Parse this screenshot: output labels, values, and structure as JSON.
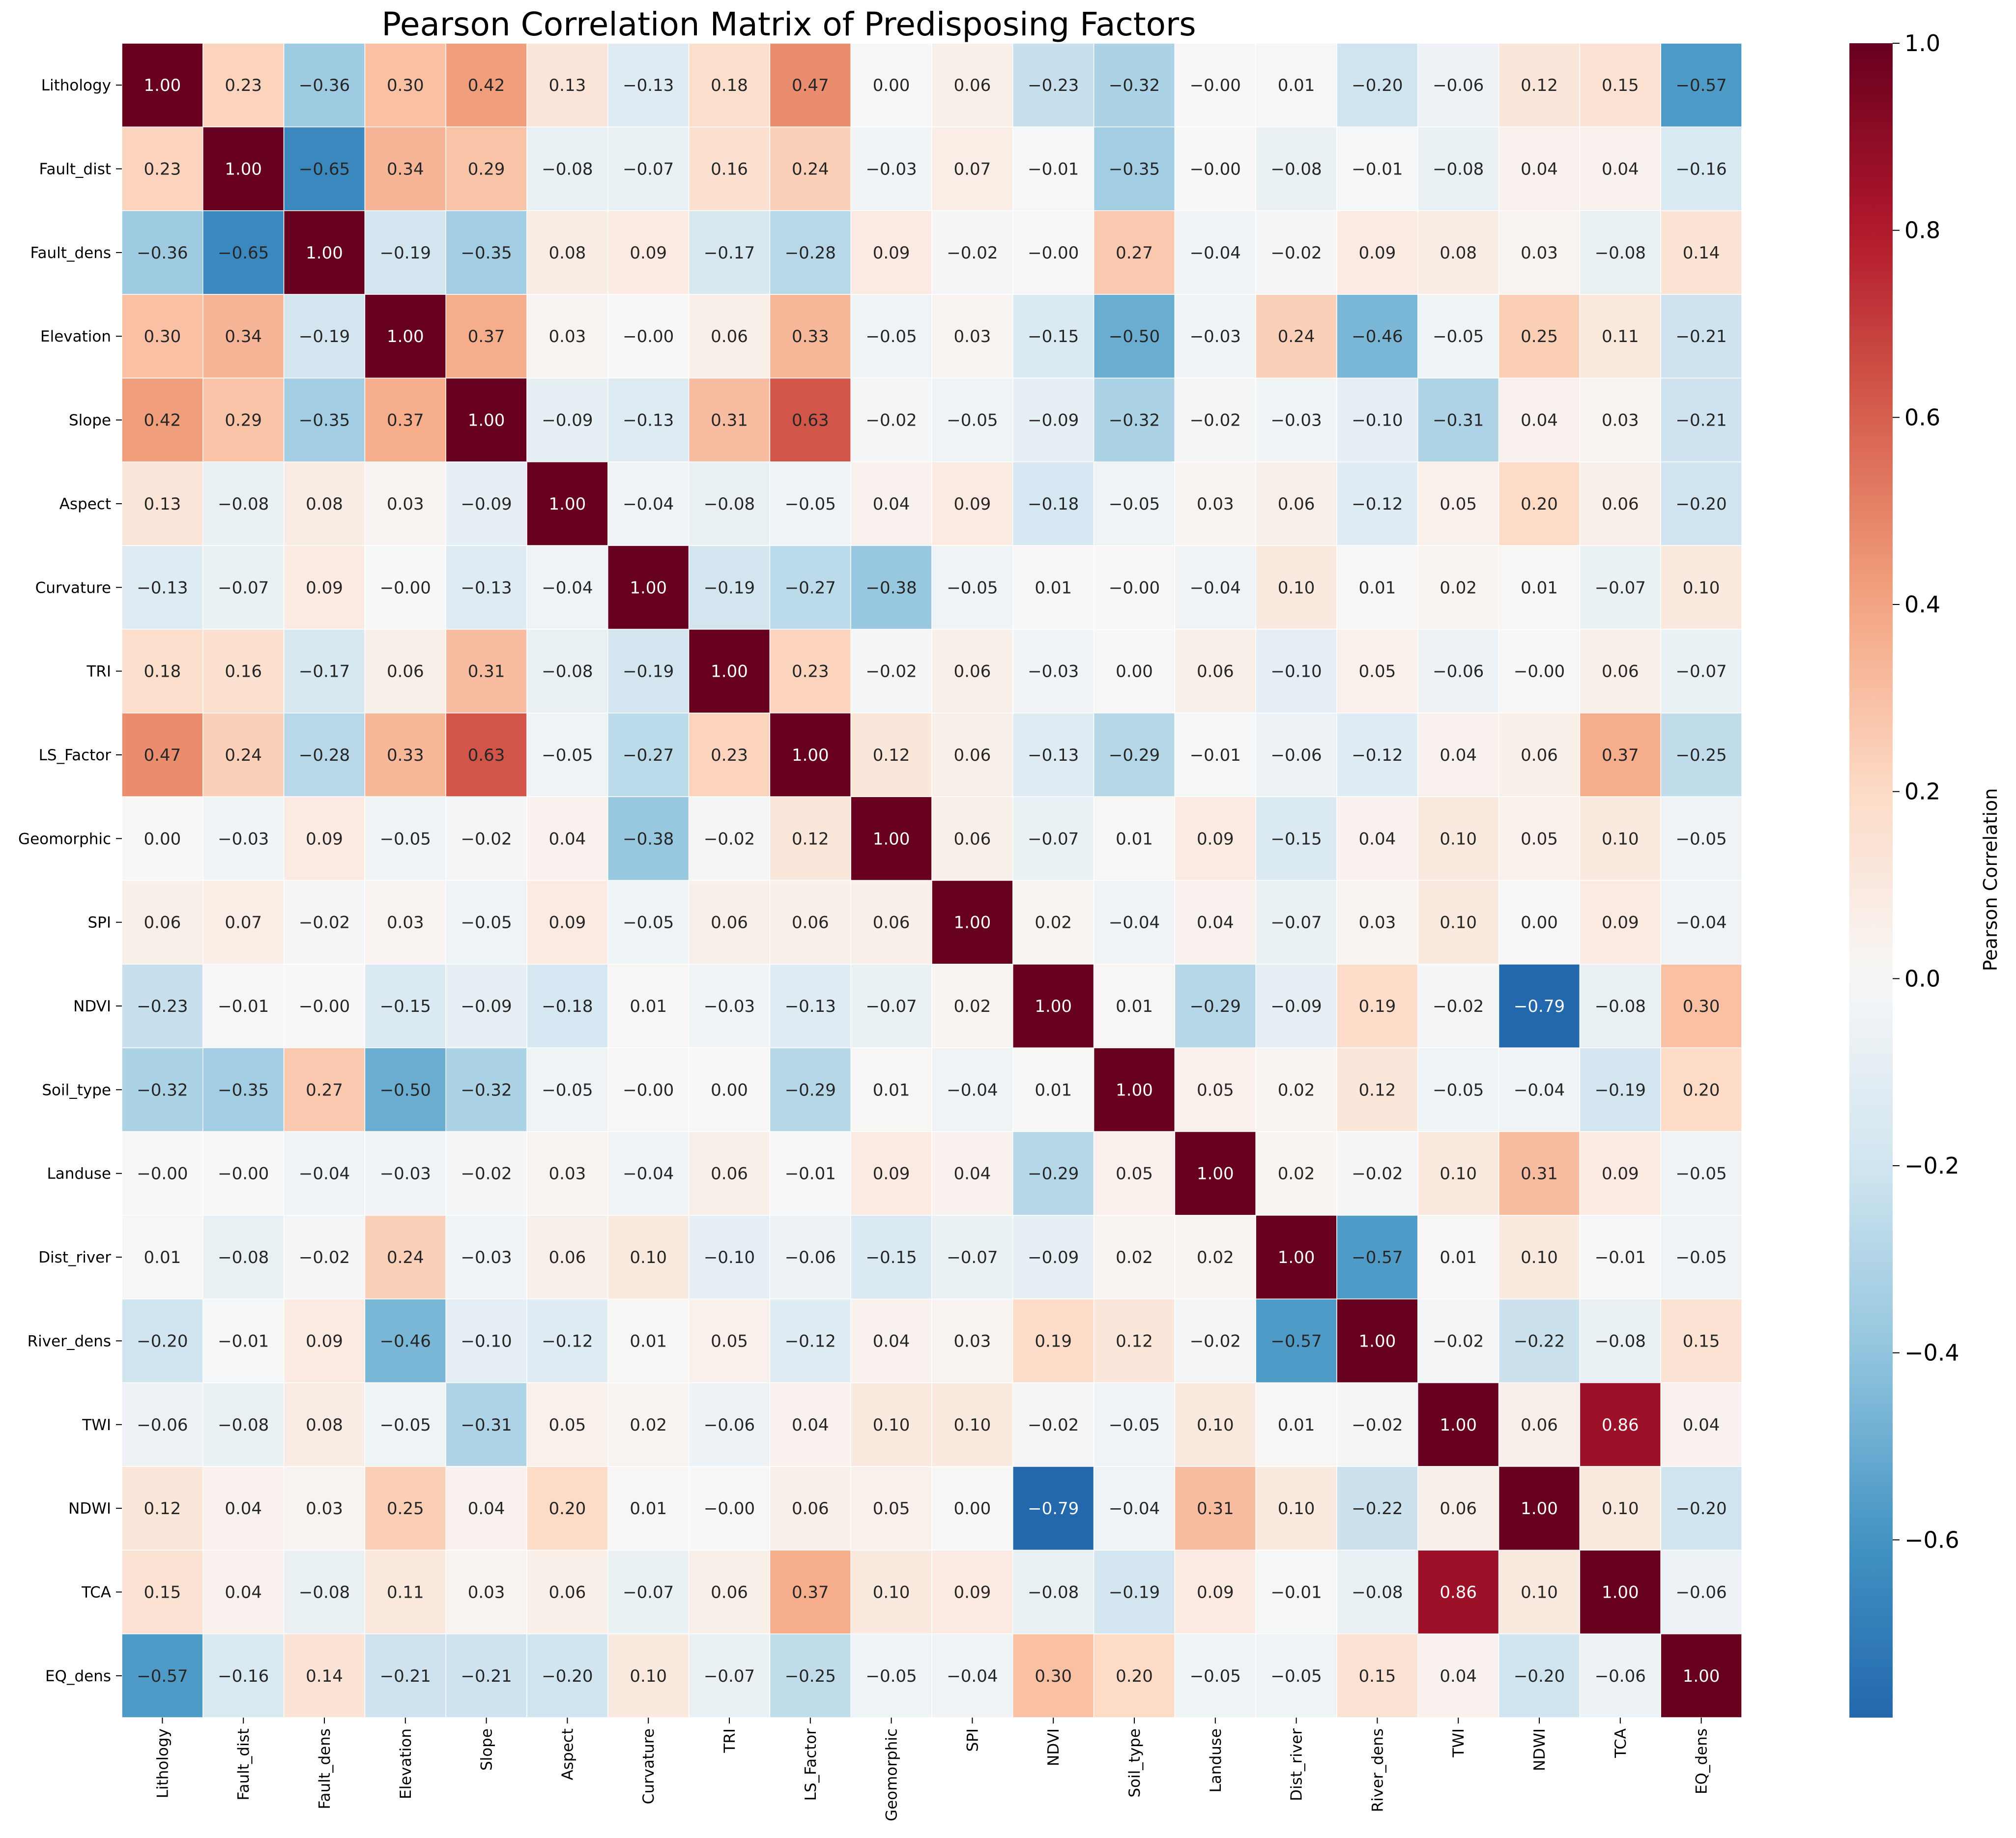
{
  "chart_data": {
    "type": "heatmap",
    "title": "Pearson Correlation Matrix of Predisposing Factors",
    "colorbar_label": "Pearson Correlation",
    "colormap": "RdBu_r",
    "vmin": -0.79,
    "vmax": 1.0,
    "colorbar_ticks": [
      -0.6,
      -0.4,
      -0.2,
      0.0,
      0.2,
      0.4,
      0.6,
      0.8,
      1.0
    ],
    "colorbar_tick_labels": [
      "−0.6",
      "−0.4",
      "−0.2",
      "0.0",
      "0.2",
      "0.4",
      "0.6",
      "0.8",
      "1.0"
    ],
    "labels": [
      "Lithology",
      "Fault_dist",
      "Fault_dens",
      "Elevation",
      "Slope",
      "Aspect",
      "Curvature",
      "TRI",
      "LS_Factor",
      "Geomorphic",
      "SPI",
      "NDVI",
      "Soil_type",
      "Landuse",
      "Dist_river",
      "River_dens",
      "TWI",
      "NDWI",
      "TCA",
      "EQ_dens"
    ],
    "matrix": [
      [
        1.0,
        0.23,
        -0.36,
        0.3,
        0.42,
        0.13,
        -0.13,
        0.18,
        0.47,
        0.0,
        0.06,
        -0.23,
        -0.32,
        -0.0001,
        0.01,
        -0.2,
        -0.06,
        0.12,
        0.15,
        -0.57
      ],
      [
        0.23,
        1.0,
        -0.65,
        0.34,
        0.29,
        -0.08,
        -0.07,
        0.16,
        0.24,
        -0.03,
        0.07,
        -0.01,
        -0.35,
        -0.0001,
        -0.08,
        -0.01,
        -0.08,
        0.04,
        0.04,
        -0.16
      ],
      [
        -0.36,
        -0.65,
        1.0,
        -0.19,
        -0.35,
        0.08,
        0.09,
        -0.17,
        -0.28,
        0.09,
        -0.02,
        -0.0001,
        0.27,
        -0.04,
        -0.02,
        0.09,
        0.08,
        0.03,
        -0.08,
        0.14
      ],
      [
        0.3,
        0.34,
        -0.19,
        1.0,
        0.37,
        0.03,
        -0.0001,
        0.06,
        0.33,
        -0.05,
        0.03,
        -0.15,
        -0.5,
        -0.03,
        0.24,
        -0.46,
        -0.05,
        0.25,
        0.11,
        -0.21
      ],
      [
        0.42,
        0.29,
        -0.35,
        0.37,
        1.0,
        -0.09,
        -0.13,
        0.31,
        0.63,
        -0.02,
        -0.05,
        -0.09,
        -0.32,
        -0.02,
        -0.03,
        -0.1,
        -0.31,
        0.04,
        0.03,
        -0.21
      ],
      [
        0.13,
        -0.08,
        0.08,
        0.03,
        -0.09,
        1.0,
        -0.04,
        -0.08,
        -0.05,
        0.04,
        0.09,
        -0.18,
        -0.05,
        0.03,
        0.06,
        -0.12,
        0.05,
        0.2,
        0.06,
        -0.2
      ],
      [
        -0.13,
        -0.07,
        0.09,
        -0.0001,
        -0.13,
        -0.04,
        1.0,
        -0.19,
        -0.27,
        -0.38,
        -0.05,
        0.01,
        -0.0001,
        -0.04,
        0.1,
        0.01,
        0.02,
        0.01,
        -0.07,
        0.1
      ],
      [
        0.18,
        0.16,
        -0.17,
        0.06,
        0.31,
        -0.08,
        -0.19,
        1.0,
        0.23,
        -0.02,
        0.06,
        -0.03,
        0.0,
        0.06,
        -0.1,
        0.05,
        -0.06,
        -0.0001,
        0.06,
        -0.07
      ],
      [
        0.47,
        0.24,
        -0.28,
        0.33,
        0.63,
        -0.05,
        -0.27,
        0.23,
        1.0,
        0.12,
        0.06,
        -0.13,
        -0.29,
        -0.01,
        -0.06,
        -0.12,
        0.04,
        0.06,
        0.37,
        -0.25
      ],
      [
        0.0,
        -0.03,
        0.09,
        -0.05,
        -0.02,
        0.04,
        -0.38,
        -0.02,
        0.12,
        1.0,
        0.06,
        -0.07,
        0.01,
        0.09,
        -0.15,
        0.04,
        0.1,
        0.05,
        0.1,
        -0.05
      ],
      [
        0.06,
        0.07,
        -0.02,
        0.03,
        -0.05,
        0.09,
        -0.05,
        0.06,
        0.06,
        0.06,
        1.0,
        0.02,
        -0.04,
        0.04,
        -0.07,
        0.03,
        0.1,
        0.0,
        0.09,
        -0.04
      ],
      [
        -0.23,
        -0.01,
        -0.0001,
        -0.15,
        -0.09,
        -0.18,
        0.01,
        -0.03,
        -0.13,
        -0.07,
        0.02,
        1.0,
        0.01,
        -0.29,
        -0.09,
        0.19,
        -0.02,
        -0.79,
        -0.08,
        0.3
      ],
      [
        -0.32,
        -0.35,
        0.27,
        -0.5,
        -0.32,
        -0.05,
        -0.0001,
        0.0,
        -0.29,
        0.01,
        -0.04,
        0.01,
        1.0,
        0.05,
        0.02,
        0.12,
        -0.05,
        -0.04,
        -0.19,
        0.2
      ],
      [
        -0.0001,
        -0.0001,
        -0.04,
        -0.03,
        -0.02,
        0.03,
        -0.04,
        0.06,
        -0.01,
        0.09,
        0.04,
        -0.29,
        0.05,
        1.0,
        0.02,
        -0.02,
        0.1,
        0.31,
        0.09,
        -0.05
      ],
      [
        0.01,
        -0.08,
        -0.02,
        0.24,
        -0.03,
        0.06,
        0.1,
        -0.1,
        -0.06,
        -0.15,
        -0.07,
        -0.09,
        0.02,
        0.02,
        1.0,
        -0.57,
        0.01,
        0.1,
        -0.01,
        -0.05
      ],
      [
        -0.2,
        -0.01,
        0.09,
        -0.46,
        -0.1,
        -0.12,
        0.01,
        0.05,
        -0.12,
        0.04,
        0.03,
        0.19,
        0.12,
        -0.02,
        -0.57,
        1.0,
        -0.02,
        -0.22,
        -0.08,
        0.15
      ],
      [
        -0.06,
        -0.08,
        0.08,
        -0.05,
        -0.31,
        0.05,
        0.02,
        -0.06,
        0.04,
        0.1,
        0.1,
        -0.02,
        -0.05,
        0.1,
        0.01,
        -0.02,
        1.0,
        0.06,
        0.86,
        0.04
      ],
      [
        0.12,
        0.04,
        0.03,
        0.25,
        0.04,
        0.2,
        0.01,
        -0.0001,
        0.06,
        0.05,
        0.0,
        -0.79,
        -0.04,
        0.31,
        0.1,
        -0.22,
        0.06,
        1.0,
        0.1,
        -0.2
      ],
      [
        0.15,
        0.04,
        -0.08,
        0.11,
        0.03,
        0.06,
        -0.07,
        0.06,
        0.37,
        0.1,
        0.09,
        -0.08,
        -0.19,
        0.09,
        -0.01,
        -0.08,
        0.86,
        0.1,
        1.0,
        -0.06
      ],
      [
        -0.57,
        -0.16,
        0.14,
        -0.21,
        -0.21,
        -0.2,
        0.1,
        -0.07,
        -0.25,
        -0.05,
        -0.04,
        0.3,
        0.2,
        -0.05,
        -0.05,
        0.15,
        0.04,
        -0.2,
        -0.06,
        1.0
      ]
    ],
    "cell_text": [
      [
        "1.00",
        "0.23",
        "−0.36",
        "0.30",
        "0.42",
        "0.13",
        "−0.13",
        "0.18",
        "0.47",
        "0.00",
        "0.06",
        "−0.23",
        "−0.32",
        "−0.00",
        "0.01",
        "−0.20",
        "−0.06",
        "0.12",
        "0.15",
        "−0.57"
      ],
      [
        "0.23",
        "1.00",
        "−0.65",
        "0.34",
        "0.29",
        "−0.08",
        "−0.07",
        "0.16",
        "0.24",
        "−0.03",
        "0.07",
        "−0.01",
        "−0.35",
        "−0.00",
        "−0.08",
        "−0.01",
        "−0.08",
        "0.04",
        "0.04",
        "−0.16"
      ],
      [
        "−0.36",
        "−0.65",
        "1.00",
        "−0.19",
        "−0.35",
        "0.08",
        "0.09",
        "−0.17",
        "−0.28",
        "0.09",
        "−0.02",
        "−0.00",
        "0.27",
        "−0.04",
        "−0.02",
        "0.09",
        "0.08",
        "0.03",
        "−0.08",
        "0.14"
      ],
      [
        "0.30",
        "0.34",
        "−0.19",
        "1.00",
        "0.37",
        "0.03",
        "−0.00",
        "0.06",
        "0.33",
        "−0.05",
        "0.03",
        "−0.15",
        "−0.50",
        "−0.03",
        "0.24",
        "−0.46",
        "−0.05",
        "0.25",
        "0.11",
        "−0.21"
      ],
      [
        "0.42",
        "0.29",
        "−0.35",
        "0.37",
        "1.00",
        "−0.09",
        "−0.13",
        "0.31",
        "0.63",
        "−0.02",
        "−0.05",
        "−0.09",
        "−0.32",
        "−0.02",
        "−0.03",
        "−0.10",
        "−0.31",
        "0.04",
        "0.03",
        "−0.21"
      ],
      [
        "0.13",
        "−0.08",
        "0.08",
        "0.03",
        "−0.09",
        "1.00",
        "−0.04",
        "−0.08",
        "−0.05",
        "0.04",
        "0.09",
        "−0.18",
        "−0.05",
        "0.03",
        "0.06",
        "−0.12",
        "0.05",
        "0.20",
        "0.06",
        "−0.20"
      ],
      [
        "−0.13",
        "−0.07",
        "0.09",
        "−0.00",
        "−0.13",
        "−0.04",
        "1.00",
        "−0.19",
        "−0.27",
        "−0.38",
        "−0.05",
        "0.01",
        "−0.00",
        "−0.04",
        "0.10",
        "0.01",
        "0.02",
        "0.01",
        "−0.07",
        "0.10"
      ],
      [
        "0.18",
        "0.16",
        "−0.17",
        "0.06",
        "0.31",
        "−0.08",
        "−0.19",
        "1.00",
        "0.23",
        "−0.02",
        "0.06",
        "−0.03",
        "0.00",
        "0.06",
        "−0.10",
        "0.05",
        "−0.06",
        "−0.00",
        "0.06",
        "−0.07"
      ],
      [
        "0.47",
        "0.24",
        "−0.28",
        "0.33",
        "0.63",
        "−0.05",
        "−0.27",
        "0.23",
        "1.00",
        "0.12",
        "0.06",
        "−0.13",
        "−0.29",
        "−0.01",
        "−0.06",
        "−0.12",
        "0.04",
        "0.06",
        "0.37",
        "−0.25"
      ],
      [
        "0.00",
        "−0.03",
        "0.09",
        "−0.05",
        "−0.02",
        "0.04",
        "−0.38",
        "−0.02",
        "0.12",
        "1.00",
        "0.06",
        "−0.07",
        "0.01",
        "0.09",
        "−0.15",
        "0.04",
        "0.10",
        "0.05",
        "0.10",
        "−0.05"
      ],
      [
        "0.06",
        "0.07",
        "−0.02",
        "0.03",
        "−0.05",
        "0.09",
        "−0.05",
        "0.06",
        "0.06",
        "0.06",
        "1.00",
        "0.02",
        "−0.04",
        "0.04",
        "−0.07",
        "0.03",
        "0.10",
        "0.00",
        "0.09",
        "−0.04"
      ],
      [
        "−0.23",
        "−0.01",
        "−0.00",
        "−0.15",
        "−0.09",
        "−0.18",
        "0.01",
        "−0.03",
        "−0.13",
        "−0.07",
        "0.02",
        "1.00",
        "0.01",
        "−0.29",
        "−0.09",
        "0.19",
        "−0.02",
        "−0.79",
        "−0.08",
        "0.30"
      ],
      [
        "−0.32",
        "−0.35",
        "0.27",
        "−0.50",
        "−0.32",
        "−0.05",
        "−0.00",
        "0.00",
        "−0.29",
        "0.01",
        "−0.04",
        "0.01",
        "1.00",
        "0.05",
        "0.02",
        "0.12",
        "−0.05",
        "−0.04",
        "−0.19",
        "0.20"
      ],
      [
        "−0.00",
        "−0.00",
        "−0.04",
        "−0.03",
        "−0.02",
        "0.03",
        "−0.04",
        "0.06",
        "−0.01",
        "0.09",
        "0.04",
        "−0.29",
        "0.05",
        "1.00",
        "0.02",
        "−0.02",
        "0.10",
        "0.31",
        "0.09",
        "−0.05"
      ],
      [
        "0.01",
        "−0.08",
        "−0.02",
        "0.24",
        "−0.03",
        "0.06",
        "0.10",
        "−0.10",
        "−0.06",
        "−0.15",
        "−0.07",
        "−0.09",
        "0.02",
        "0.02",
        "1.00",
        "−0.57",
        "0.01",
        "0.10",
        "−0.01",
        "−0.05"
      ],
      [
        "−0.20",
        "−0.01",
        "0.09",
        "−0.46",
        "−0.10",
        "−0.12",
        "0.01",
        "0.05",
        "−0.12",
        "0.04",
        "0.03",
        "0.19",
        "0.12",
        "−0.02",
        "−0.57",
        "1.00",
        "−0.02",
        "−0.22",
        "−0.08",
        "0.15"
      ],
      [
        "−0.06",
        "−0.08",
        "0.08",
        "−0.05",
        "−0.31",
        "0.05",
        "0.02",
        "−0.06",
        "0.04",
        "0.10",
        "0.10",
        "−0.02",
        "−0.05",
        "0.10",
        "0.01",
        "−0.02",
        "1.00",
        "0.06",
        "0.86",
        "0.04"
      ],
      [
        "0.12",
        "0.04",
        "0.03",
        "0.25",
        "0.04",
        "0.20",
        "0.01",
        "−0.00",
        "0.06",
        "0.05",
        "0.00",
        "−0.79",
        "−0.04",
        "0.31",
        "0.10",
        "−0.22",
        "0.06",
        "1.00",
        "0.10",
        "−0.20"
      ],
      [
        "0.15",
        "0.04",
        "−0.08",
        "0.11",
        "0.03",
        "0.06",
        "−0.07",
        "0.06",
        "0.37",
        "0.10",
        "0.09",
        "−0.08",
        "−0.19",
        "0.09",
        "−0.01",
        "−0.08",
        "0.86",
        "0.10",
        "1.00",
        "−0.06"
      ],
      [
        "−0.57",
        "−0.16",
        "0.14",
        "−0.21",
        "−0.21",
        "−0.20",
        "0.10",
        "−0.07",
        "−0.25",
        "−0.05",
        "−0.04",
        "0.30",
        "0.20",
        "−0.05",
        "−0.05",
        "0.15",
        "0.04",
        "−0.20",
        "−0.06",
        "1.00"
      ]
    ]
  }
}
